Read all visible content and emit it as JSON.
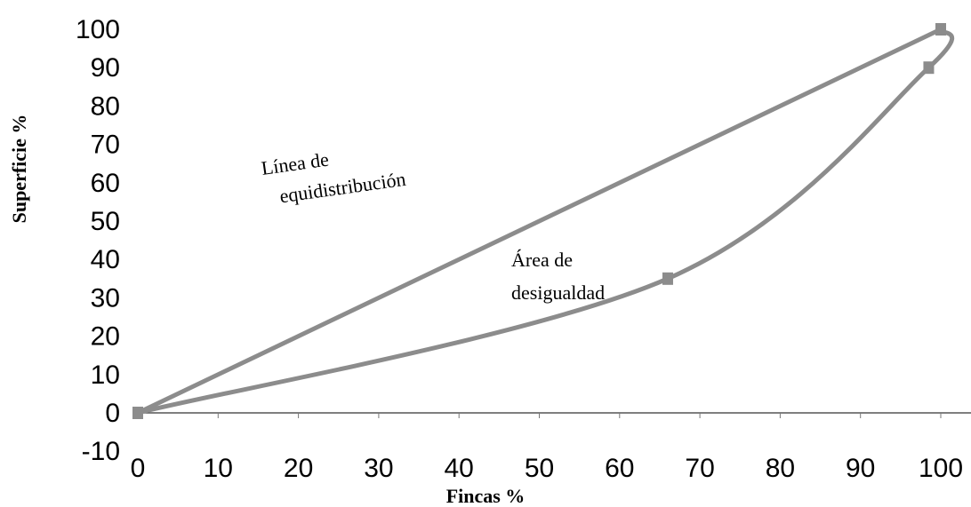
{
  "chart_data": {
    "type": "line",
    "xlabel": "Fincas %",
    "ylabel": "Superficie %",
    "xlim": [
      0,
      100
    ],
    "ylim": [
      -10,
      100
    ],
    "x_ticks": [
      "0",
      "10",
      "20",
      "30",
      "40",
      "50",
      "60",
      "70",
      "80",
      "90",
      "100"
    ],
    "y_ticks": [
      "100",
      "90",
      "80",
      "70",
      "60",
      "50",
      "40",
      "30",
      "20",
      "10",
      "0",
      "-10"
    ],
    "series": [
      {
        "points": [
          [
            0,
            0
          ],
          [
            100,
            100
          ]
        ],
        "color": "#8c8c8c"
      },
      {
        "points": [
          [
            0,
            0
          ],
          [
            66,
            35
          ],
          [
            98.5,
            90
          ],
          [
            100,
            100
          ]
        ],
        "color": "#8c8c8c"
      }
    ],
    "annotations": [
      {
        "lines": [
          "Línea de",
          "equidistribución"
        ]
      },
      {
        "lines": [
          "Área de",
          "desigualdad"
        ]
      }
    ],
    "grid": false
  }
}
